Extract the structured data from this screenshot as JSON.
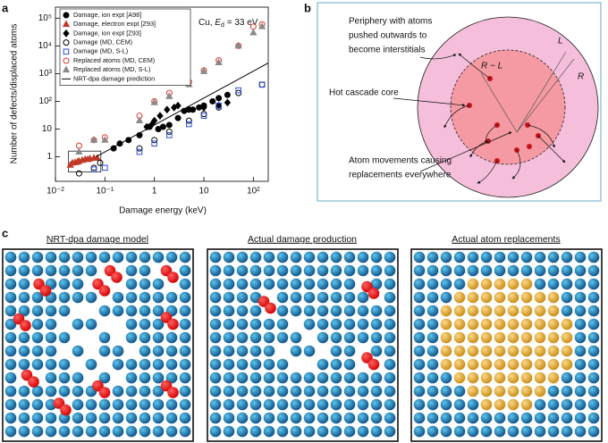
{
  "chart_data": {
    "type": "scatter",
    "panel_label": "a",
    "xlabel": "Damage energy (keV)",
    "ylabel": "Number of defects/displaced atoms",
    "annotation": {
      "prefix": "Cu,",
      "symbol": "E",
      "subscript": "d",
      "suffix": "= 33 eV"
    },
    "log_x": true,
    "log_y": true,
    "legend": "upper left",
    "xlim": [
      0.01,
      200
    ],
    "ylim": [
      0.13,
      250000
    ],
    "xticks": [
      {
        "value": 0.01,
        "label": "10⁻²"
      },
      {
        "value": 0.1,
        "label": "10⁻¹"
      },
      1,
      10,
      {
        "value": 100,
        "label": "10²"
      }
    ],
    "yticks": [
      1,
      10,
      {
        "value": 100,
        "label": "10²"
      },
      {
        "value": 1000,
        "label": "10³"
      },
      {
        "value": 10000,
        "label": "10⁴"
      },
      {
        "value": 100000,
        "label": "10⁵"
      }
    ],
    "series": [
      {
        "name": "Damage, ion expt [A98]",
        "marker": "circle",
        "filled": true,
        "color": "#000000",
        "x": [
          0.15,
          0.2,
          0.3,
          0.5,
          0.8,
          1.2,
          1.5,
          2,
          3,
          4,
          5,
          6,
          8,
          10,
          15,
          20,
          30
        ],
        "values": [
          2,
          3,
          4,
          6,
          12,
          10,
          12,
          14,
          25,
          45,
          50,
          50,
          60,
          70,
          100,
          130,
          170
        ]
      },
      {
        "name": "Damage, electron expt [Z93]",
        "marker": "triangle",
        "filled": true,
        "color": "#c0392b",
        "x": [
          0.02,
          0.022,
          0.025,
          0.028,
          0.03,
          0.035,
          0.04,
          0.045,
          0.05,
          0.06,
          0.07
        ],
        "values": [
          0.5,
          0.6,
          0.62,
          0.65,
          0.7,
          0.75,
          0.8,
          0.8,
          0.85,
          0.9,
          0.9
        ]
      },
      {
        "name": "Damage, ion expt [Z93]",
        "marker": "diamond",
        "filled": true,
        "color": "#000000",
        "x": [
          0.7,
          0.9,
          1.0,
          1.3,
          1.8,
          2.5,
          3,
          10,
          20,
          30
        ],
        "values": [
          12,
          15,
          20,
          30,
          50,
          60,
          70,
          60,
          70,
          90
        ]
      },
      {
        "name": "Damage (MD, CEM)",
        "marker": "circle",
        "filled": false,
        "color": "#000000",
        "x": [
          0.03,
          0.06,
          0.08,
          0.5,
          1,
          2,
          5,
          10,
          20,
          50,
          150
        ],
        "values": [
          0.25,
          0.4,
          0.6,
          2,
          4,
          8,
          20,
          35,
          60,
          200,
          400
        ]
      },
      {
        "name": "Damage (MD, S-L)",
        "marker": "square",
        "filled": false,
        "color": "#2b4fd4",
        "x": [
          0.06,
          0.1,
          0.5,
          1,
          2,
          5,
          10,
          20,
          50,
          150
        ],
        "values": [
          0.35,
          0.4,
          1.5,
          3,
          6,
          15,
          30,
          70,
          250,
          400
        ]
      },
      {
        "name": "Replaced atoms (MD, CEM)",
        "marker": "circle",
        "filled": false,
        "color": "#d9362b",
        "x": [
          0.03,
          0.06,
          0.1,
          0.5,
          1,
          2,
          5,
          10,
          20,
          50,
          100,
          150
        ],
        "values": [
          2.5,
          4,
          5,
          30,
          100,
          200,
          500,
          1300,
          3000,
          10000,
          50000,
          60000
        ]
      },
      {
        "name": "Replaced atoms (MD, S-L)",
        "marker": "triangle",
        "filled": true,
        "color": "#8a8a8a",
        "x": [
          0.03,
          0.06,
          0.1,
          0.5,
          1,
          2,
          5,
          10,
          20,
          50,
          100,
          150
        ],
        "values": [
          1.5,
          4,
          4,
          20,
          90,
          150,
          400,
          1200,
          2500,
          10000,
          30000,
          50000
        ]
      },
      {
        "name": "NRT-dpa damage prediction",
        "marker": "line",
        "color": "#000000",
        "x": [
          0.066,
          200
        ],
        "values": [
          1,
          2400
        ]
      }
    ]
  },
  "diagram": {
    "panel_label": "b",
    "periphery": [
      "Periphery with atoms",
      "pushed outwards to",
      "become interstitials"
    ],
    "core": "Hot cascade core",
    "movements": [
      "Atom movements causing",
      "replacements everywhere"
    ],
    "labels": {
      "inner_radius": "R − L",
      "shell": "L",
      "radius": "R"
    }
  },
  "grids": {
    "panel_label": "c",
    "titles": [
      "NRT-dpa damage model",
      "Actual damage production",
      "Actual atom replacements"
    ]
  }
}
